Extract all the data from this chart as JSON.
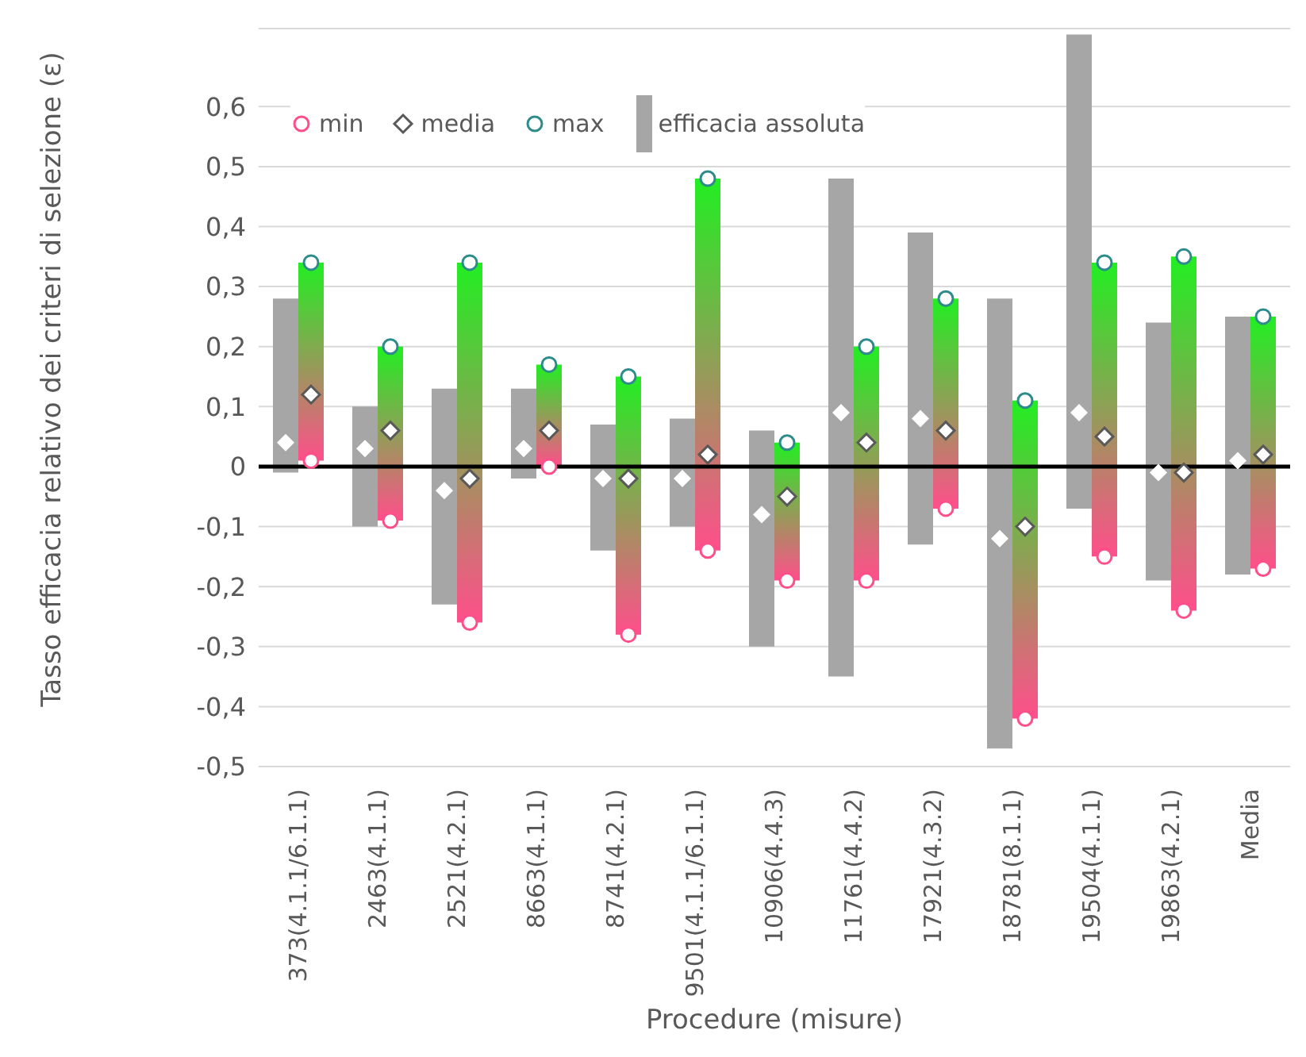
{
  "chart_data": {
    "type": "bar",
    "ylabel": "Tasso efficacia relativo dei criteri di selezione (ε)",
    "xlabel": "Procedure (misure)",
    "categories": [
      "373(4.1.1/6.1.1)",
      "2463(4.1.1)",
      "2521(4.2.1)",
      "8663(4.1.1)",
      "8741(4.2.1)",
      "9501(4.1.1/6.1.1)",
      "10906(4.4.3)",
      "11761(4.4.2)",
      "17921(4.3.2)",
      "18781(8.1.1)",
      "19504(4.1.1)",
      "19863(4.2.1)",
      "Media"
    ],
    "series": [
      {
        "name": "efficacia assoluta",
        "color": "#a6a6a6",
        "base": [
          -0.01,
          -0.1,
          -0.23,
          -0.02,
          -0.14,
          -0.1,
          -0.3,
          -0.35,
          -0.13,
          -0.47,
          -0.07,
          -0.19,
          -0.18
        ],
        "values": [
          0.29,
          0.2,
          0.36,
          0.15,
          0.21,
          0.18,
          0.36,
          0.83,
          0.52,
          0.75,
          0.79,
          0.43,
          0.43
        ]
      },
      {
        "type": "scatter",
        "marker": "diamond",
        "color": "#ffffff",
        "values": [
          0.04,
          0.03,
          -0.04,
          0.03,
          -0.02,
          -0.02,
          -0.08,
          0.09,
          0.08,
          -0.12,
          0.09,
          -0.01,
          0.01
        ]
      },
      {
        "color": "#22ee22",
        "base": [
          0.01,
          -0.09,
          -0.26,
          0,
          -0.28,
          -0.14,
          -0.19,
          -0.19,
          -0.07,
          -0.42,
          -0.15,
          -0.24,
          -0.17
        ],
        "values": [
          0.33,
          0.29,
          0.6,
          0.17,
          0.43,
          0.62,
          0.23,
          0.39,
          0.35,
          0.53,
          0.49,
          0.59,
          0.42
        ]
      },
      {
        "name": "min",
        "type": "scatter",
        "marker": "circle",
        "color": "#ff4f8b",
        "values": [
          0.01,
          -0.09,
          -0.26,
          0,
          -0.28,
          -0.14,
          -0.19,
          -0.19,
          -0.07,
          -0.42,
          -0.15,
          -0.24,
          -0.17
        ]
      },
      {
        "name": "media",
        "type": "scatter",
        "marker": "diamond",
        "color": "#595959",
        "values": [
          0.12,
          0.06,
          -0.02,
          0.06,
          -0.02,
          0.02,
          -0.05,
          0.04,
          0.06,
          -0.1,
          0.05,
          -0.01,
          0.02
        ]
      },
      {
        "name": "max",
        "type": "scatter",
        "marker": "circle",
        "color": "#2e8b8b",
        "values": [
          0.34,
          0.2,
          0.34,
          0.17,
          0.15,
          0.48,
          0.04,
          0.2,
          0.28,
          0.11,
          0.34,
          0.35,
          0.25
        ]
      }
    ],
    "ylim": [
      -0.5,
      0.73
    ],
    "yticks": [
      {
        "value": -0.5,
        "label": "-0,5"
      },
      {
        "value": -0.4,
        "label": "-0,4"
      },
      {
        "value": -0.3,
        "label": "-0,3"
      },
      {
        "value": -0.2,
        "label": "-0,2"
      },
      {
        "value": -0.1,
        "label": "-0,1"
      },
      0,
      {
        "value": 0.1,
        "label": "0,1"
      },
      {
        "value": 0.2,
        "label": "0,2"
      },
      {
        "value": 0.3,
        "label": "0,3"
      },
      {
        "value": 0.4,
        "label": "0,4"
      },
      {
        "value": 0.5,
        "label": "0,5"
      },
      {
        "value": 0.6,
        "label": "0,6"
      }
    ],
    "ref_lines": [
      {
        "axis": "y",
        "value": 0,
        "color": "#000000"
      }
    ],
    "grid": "y",
    "legend": "top left"
  }
}
